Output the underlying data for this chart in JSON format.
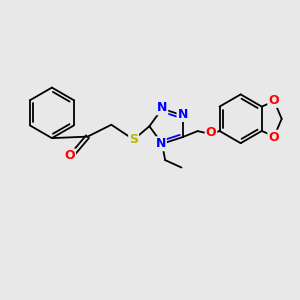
{
  "background_color": "#e8e8e8",
  "bond_color": "#000000",
  "atom_colors": {
    "N": "#0000ff",
    "O": "#ff0000",
    "S": "#b8b800",
    "C": "#000000"
  },
  "figsize": [
    3.0,
    3.0
  ],
  "dpi": 100
}
